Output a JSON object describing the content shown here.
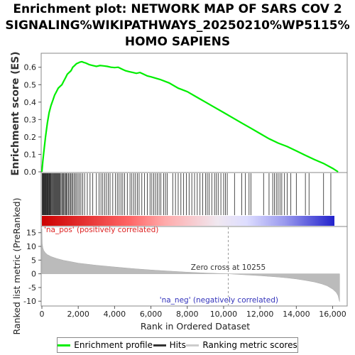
{
  "chart_data": {
    "type": "line",
    "title_lines": [
      "Enrichment plot: NETWORK MAP OF SARS COV 2",
      "SIGNALING%WIKIPATHWAYS_20250210%WP5115%",
      "HOMO SAPIENS"
    ],
    "es_panel": {
      "ylabel": "Enrichment score (ES)",
      "ylim": [
        0,
        0.66
      ],
      "yticks": [
        "0.0",
        "0.1",
        "0.2",
        "0.3",
        "0.4",
        "0.5",
        "0.6"
      ],
      "ytick_values": [
        0,
        0.1,
        0.2,
        0.3,
        0.4,
        0.5,
        0.6
      ],
      "series": [
        {
          "name": "Enrichment profile",
          "color": "#00ee00",
          "x": [
            0,
            50,
            100,
            200,
            300,
            400,
            500,
            600,
            700,
            800,
            900,
            1000,
            1100,
            1200,
            1300,
            1400,
            1500,
            1600,
            1700,
            1800,
            1900,
            2000,
            2100,
            2200,
            2300,
            2400,
            2500,
            2600,
            2800,
            3000,
            3200,
            3400,
            3600,
            3800,
            4000,
            4200,
            4400,
            4600,
            4800,
            5000,
            5200,
            5400,
            5600,
            5800,
            6000,
            6500,
            7000,
            7500,
            8000,
            8500,
            9000,
            9500,
            10000,
            10500,
            11000,
            11500,
            12000,
            12500,
            13000,
            13500,
            14000,
            14500,
            15000,
            15500,
            16000,
            16300
          ],
          "y": [
            0.0,
            0.06,
            0.11,
            0.2,
            0.28,
            0.34,
            0.38,
            0.41,
            0.44,
            0.46,
            0.48,
            0.49,
            0.5,
            0.52,
            0.54,
            0.56,
            0.57,
            0.58,
            0.6,
            0.61,
            0.62,
            0.625,
            0.63,
            0.632,
            0.628,
            0.625,
            0.62,
            0.615,
            0.61,
            0.605,
            0.61,
            0.608,
            0.605,
            0.6,
            0.598,
            0.6,
            0.59,
            0.58,
            0.575,
            0.57,
            0.565,
            0.57,
            0.56,
            0.55,
            0.545,
            0.53,
            0.51,
            0.48,
            0.46,
            0.43,
            0.4,
            0.37,
            0.34,
            0.31,
            0.28,
            0.25,
            0.22,
            0.19,
            0.165,
            0.145,
            0.12,
            0.095,
            0.07,
            0.048,
            0.02,
            0.0
          ]
        }
      ]
    },
    "hits": [
      20,
      40,
      60,
      80,
      100,
      130,
      160,
      190,
      220,
      250,
      280,
      310,
      340,
      370,
      400,
      430,
      460,
      490,
      520,
      560,
      600,
      640,
      680,
      720,
      760,
      800,
      840,
      880,
      920,
      960,
      1000,
      1050,
      1100,
      1150,
      1200,
      1250,
      1300,
      1350,
      1400,
      1460,
      1520,
      1580,
      1640,
      1700,
      1770,
      1840,
      1910,
      1990,
      2070,
      2150,
      2250,
      2350,
      2500,
      2650,
      2800,
      3000,
      3150,
      3250,
      3350,
      3450,
      3550,
      3650,
      3750,
      3900,
      4050,
      4150,
      4250,
      4350,
      4450,
      4550,
      4700,
      4850,
      4950,
      5050,
      5150,
      5250,
      5350,
      5500,
      5650,
      5800,
      5950,
      6050,
      6150,
      6250,
      6350,
      6450,
      6550,
      6700,
      6800,
      6900,
      7200,
      7350,
      7500,
      7650,
      7800,
      7950,
      8100,
      8250,
      8400,
      8550,
      8700,
      8850,
      9000,
      9100,
      9200,
      9350,
      9500,
      9600,
      9700,
      9850,
      10000,
      10100,
      10200,
      10600,
      11000,
      11200,
      11400,
      11500,
      12200,
      12500,
      12700,
      12800,
      12900,
      13000,
      13100,
      13200,
      13350,
      13500,
      13700,
      14000,
      14500,
      14700,
      15500,
      15900
    ],
    "rank_panel": {
      "ylabel": "Ranked list metric (PreRanked)",
      "ylim": [
        -11.5,
        17
      ],
      "yticks": [
        "15",
        "10",
        "5",
        "0",
        "-5",
        "-10"
      ],
      "ytick_values": [
        15,
        10,
        5,
        0,
        -5,
        -10
      ],
      "xticks": [
        "0",
        "2,000",
        "4,000",
        "6,000",
        "8,000",
        "10,000",
        "12,000",
        "14,000",
        "16,000"
      ],
      "xtick_values": [
        0,
        2000,
        4000,
        6000,
        8000,
        10000,
        12000,
        14000,
        16000
      ],
      "xlabel": "Rank in Ordered Dataset",
      "xlim": [
        0,
        16800
      ],
      "metric": {
        "x": [
          0,
          20,
          50,
          100,
          200,
          300,
          500,
          800,
          1200,
          1600,
          2000,
          3000,
          4000,
          5000,
          6000,
          7000,
          8000,
          9000,
          10000,
          10255,
          11000,
          12000,
          13000,
          13500,
          14000,
          14500,
          15000,
          15400,
          15700,
          16000,
          16200,
          16300,
          16350,
          16380
        ],
        "y": [
          16.5,
          11,
          9.5,
          8.5,
          7.6,
          7.0,
          6.3,
          5.6,
          4.9,
          4.4,
          3.9,
          3.1,
          2.5,
          1.9,
          1.4,
          1.0,
          0.6,
          0.3,
          0.05,
          0,
          -0.3,
          -0.7,
          -1.2,
          -1.5,
          -1.9,
          -2.4,
          -3.0,
          -3.7,
          -4.4,
          -5.6,
          -6.8,
          -8.0,
          -9.5,
          -10.2
        ]
      },
      "zero_cross_label": "Zero cross at 10255",
      "zero_cross": 10255,
      "pos_label": "'na_pos' (positively correlated)",
      "neg_label": "'na_neg' (negatively correlated)",
      "pos_color": "#dd2222",
      "neg_color": "#3333bb"
    },
    "legend": [
      {
        "label": "Enrichment profile",
        "color": "#00ee00"
      },
      {
        "label": "Hits",
        "color": "#333333"
      },
      {
        "label": "Ranking metric scores",
        "color": "#cccccc"
      }
    ]
  }
}
